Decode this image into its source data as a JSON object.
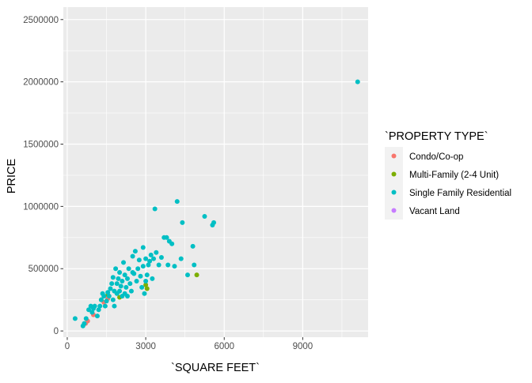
{
  "chart_data": {
    "type": "scatter",
    "title": "",
    "xlabel": "`SQUARE FEET`",
    "ylabel": "PRICE",
    "xlim": [
      -150,
      11500
    ],
    "ylim": [
      -50000,
      2600000
    ],
    "x_ticks": [
      0,
      3000,
      6000,
      9000
    ],
    "x_tick_labels": [
      "0",
      "3000",
      "6000",
      "9000"
    ],
    "y_ticks": [
      0,
      500000,
      1000000,
      1500000,
      2000000,
      2500000
    ],
    "y_tick_labels": [
      "0",
      "500000",
      "1000000",
      "1500000",
      "2000000",
      "2500000"
    ],
    "grid": true,
    "panel_background": "#ebebeb",
    "legend": {
      "title": "`PROPERTY TYPE`",
      "placement": "right"
    },
    "series": [
      {
        "name": "Condo/Co-op",
        "color": "#f8766d",
        "points": [
          [
            700,
            60000
          ],
          [
            780,
            80000
          ],
          [
            1000,
            130000
          ],
          [
            1400,
            230000
          ],
          [
            1550,
            260000
          ]
        ]
      },
      {
        "name": "Multi-Family (2-4 Unit)",
        "color": "#7cae00",
        "points": [
          [
            1300,
            250000
          ],
          [
            1550,
            290000
          ],
          [
            2000,
            270000
          ],
          [
            3000,
            370000
          ],
          [
            3050,
            340000
          ],
          [
            4950,
            450000
          ]
        ]
      },
      {
        "name": "Single Family Residential",
        "color": "#00bfc4",
        "points": [
          [
            300,
            100000
          ],
          [
            600,
            40000
          ],
          [
            650,
            60000
          ],
          [
            720,
            100000
          ],
          [
            820,
            170000
          ],
          [
            900,
            200000
          ],
          [
            950,
            150000
          ],
          [
            1000,
            180000
          ],
          [
            1050,
            200000
          ],
          [
            1150,
            120000
          ],
          [
            1200,
            170000
          ],
          [
            1250,
            200000
          ],
          [
            1300,
            250000
          ],
          [
            1350,
            300000
          ],
          [
            1400,
            280000
          ],
          [
            1450,
            200000
          ],
          [
            1500,
            240000
          ],
          [
            1550,
            310000
          ],
          [
            1600,
            280000
          ],
          [
            1650,
            340000
          ],
          [
            1700,
            380000
          ],
          [
            1750,
            250000
          ],
          [
            1750,
            430000
          ],
          [
            1800,
            200000
          ],
          [
            1800,
            320000
          ],
          [
            1850,
            500000
          ],
          [
            1900,
            300000
          ],
          [
            1900,
            380000
          ],
          [
            1950,
            420000
          ],
          [
            2000,
            320000
          ],
          [
            2000,
            470000
          ],
          [
            2050,
            360000
          ],
          [
            2100,
            280000
          ],
          [
            2100,
            400000
          ],
          [
            2150,
            550000
          ],
          [
            2200,
            300000
          ],
          [
            2200,
            450000
          ],
          [
            2250,
            350000
          ],
          [
            2300,
            280000
          ],
          [
            2300,
            420000
          ],
          [
            2350,
            500000
          ],
          [
            2400,
            380000
          ],
          [
            2450,
            320000
          ],
          [
            2500,
            470000
          ],
          [
            2500,
            600000
          ],
          [
            2550,
            460000
          ],
          [
            2600,
            640000
          ],
          [
            2650,
            400000
          ],
          [
            2700,
            500000
          ],
          [
            2750,
            570000
          ],
          [
            2800,
            440000
          ],
          [
            2850,
            350000
          ],
          [
            2900,
            670000
          ],
          [
            2900,
            520000
          ],
          [
            2950,
            300000
          ],
          [
            3000,
            400000
          ],
          [
            3000,
            580000
          ],
          [
            3050,
            450000
          ],
          [
            3100,
            530000
          ],
          [
            3150,
            560000
          ],
          [
            3200,
            610000
          ],
          [
            3250,
            420000
          ],
          [
            3300,
            580000
          ],
          [
            3350,
            980000
          ],
          [
            3400,
            630000
          ],
          [
            3500,
            530000
          ],
          [
            3600,
            590000
          ],
          [
            3700,
            750000
          ],
          [
            3800,
            750000
          ],
          [
            3850,
            530000
          ],
          [
            3900,
            720000
          ],
          [
            4000,
            700000
          ],
          [
            4100,
            520000
          ],
          [
            4200,
            1040000
          ],
          [
            4350,
            580000
          ],
          [
            4400,
            870000
          ],
          [
            4600,
            450000
          ],
          [
            4800,
            680000
          ],
          [
            4850,
            530000
          ],
          [
            5250,
            920000
          ],
          [
            5550,
            850000
          ],
          [
            5600,
            870000
          ],
          [
            11100,
            2000000
          ]
        ]
      },
      {
        "name": "Vacant Land",
        "color": "#c77cff",
        "points": []
      }
    ]
  }
}
